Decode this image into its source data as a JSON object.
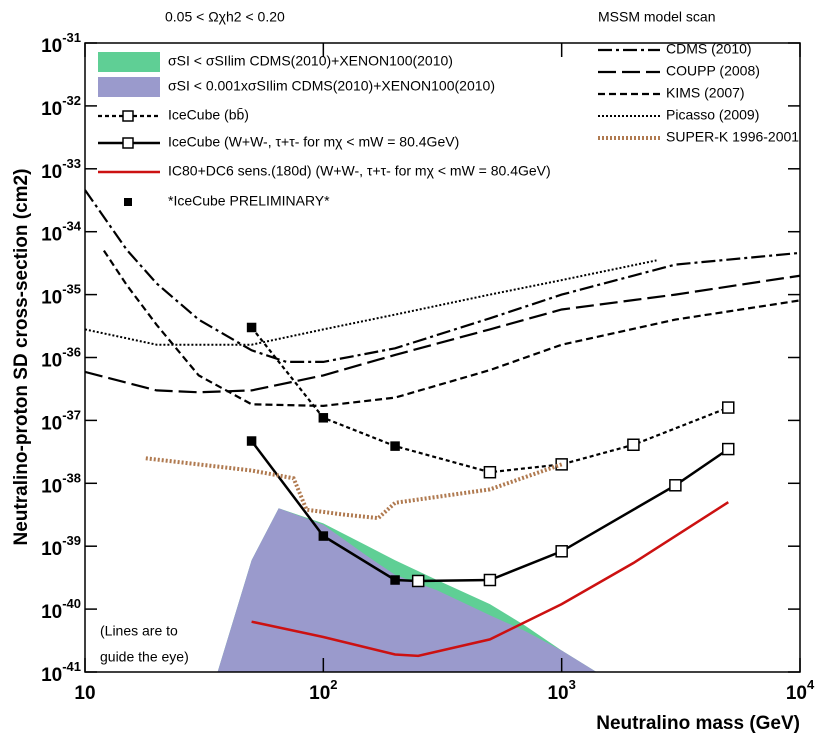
{
  "chart_data": {
    "type": "line",
    "log_x": true,
    "log_y": true,
    "xlabel": "Neutralino mass (GeV)",
    "ylabel": "Neutralino-proton SD cross-section (cm2)",
    "xlim": [
      10,
      10000
    ],
    "ylim": [
      1e-41,
      1e-31
    ],
    "xticks": [
      {
        "value": 10,
        "label": "10"
      },
      {
        "value": 100,
        "label": "10^2"
      },
      {
        "value": 1000,
        "label": "10^3"
      },
      {
        "value": 10000,
        "label": "10^4"
      }
    ],
    "yticks": [
      {
        "value": 1e-31,
        "label": "10^-31"
      },
      {
        "value": 1e-32,
        "label": "10^-32"
      },
      {
        "value": 1e-33,
        "label": "10^-33"
      },
      {
        "value": 1e-34,
        "label": "10^-34"
      },
      {
        "value": 1e-35,
        "label": "10^-35"
      },
      {
        "value": 1e-36,
        "label": "10^-36"
      },
      {
        "value": 1e-37,
        "label": "10^-37"
      },
      {
        "value": 1e-38,
        "label": "10^-38"
      },
      {
        "value": 1e-39,
        "label": "10^-39"
      },
      {
        "value": 1e-40,
        "label": "10^-40"
      },
      {
        "value": 1e-41,
        "label": "10^-41"
      }
    ],
    "annotations": [
      "0.05 < Ωχh2 < 0.20",
      "MSSM model scan",
      "(Lines are to",
      "guide the eye)",
      "*IceCube PRELIMINARY*"
    ],
    "series": [
      {
        "name": "σSI < σSIlim CDMS(2010)+XENON100(2010)",
        "kind": "area",
        "legend": "left",
        "color": "#5fcf95",
        "x": [
          36,
          50,
          65,
          100,
          150,
          200,
          300,
          500,
          700,
          1000,
          1400
        ],
        "values": [
          1e-41,
          6e-40,
          4e-39,
          2.3e-39,
          1.05e-39,
          6e-40,
          2.9e-40,
          1.2e-40,
          5.5e-41,
          2.2e-41,
          1e-41
        ]
      },
      {
        "name": "σSI < 0.001xσSIlim CDMS(2010)+XENON100(2010)",
        "kind": "area",
        "legend": "left",
        "color": "#9a9acc",
        "x": [
          36,
          50,
          65,
          100,
          150,
          200,
          300,
          500,
          700,
          1000,
          1400
        ],
        "values": [
          1e-41,
          6e-40,
          4e-39,
          2.2e-39,
          7.3e-40,
          3.5e-40,
          2e-40,
          8e-41,
          4.5e-41,
          2.2e-41,
          1e-41
        ]
      },
      {
        "name": "IceCube (bb̄)",
        "kind": "line",
        "legend": "left",
        "color": "#000000",
        "dash": "4,3",
        "width": 2.2,
        "marker": "square",
        "x": [
          50,
          100,
          200,
          500,
          1000,
          2000,
          5000
        ],
        "values": [
          3e-36,
          1.1e-37,
          3.9e-38,
          1.5e-38,
          2e-38,
          4.1e-38,
          1.6e-37
        ],
        "filled": [
          true,
          true,
          true,
          false,
          false,
          false,
          false
        ]
      },
      {
        "name": "IceCube (W+W-, τ+τ- for mχ < mW = 80.4GeV)",
        "kind": "line",
        "legend": "left",
        "color": "#000000",
        "dash": "none",
        "width": 2.5,
        "marker": "square",
        "x": [
          50,
          100,
          200,
          250,
          500,
          1000,
          3000,
          5000
        ],
        "values": [
          4.7e-38,
          1.45e-39,
          2.9e-40,
          2.8e-40,
          2.9e-40,
          8.3e-40,
          9.3e-39,
          3.5e-38
        ],
        "filled": [
          true,
          true,
          true,
          false,
          false,
          false,
          false,
          false
        ]
      },
      {
        "name": "IC80+DC6 sens.(180d) (W+W-, τ+τ- for mχ < mW = 80.4GeV)",
        "kind": "line",
        "legend": "left",
        "color": "#cc1111",
        "dash": "none",
        "width": 2.5,
        "x": [
          50,
          100,
          200,
          250,
          500,
          1000,
          2000,
          5000
        ],
        "values": [
          6.3e-41,
          3.6e-41,
          1.9e-41,
          1.8e-41,
          3.3e-41,
          1.2e-40,
          5.4e-40,
          5e-39
        ]
      },
      {
        "name": "CDMS (2010)",
        "kind": "line",
        "legend": "right",
        "color": "#000000",
        "dash": "14,4,3,4",
        "width": 2.2,
        "x": [
          10,
          15,
          20,
          30,
          50,
          70,
          100,
          200,
          500,
          1000,
          3000,
          10000
        ],
        "values": [
          4.6e-34,
          5.1e-35,
          1.5e-35,
          4e-36,
          1.3e-36,
          8.5e-37,
          8.5e-37,
          1.4e-36,
          4.2e-36,
          1e-35,
          3e-35,
          4.6e-35
        ]
      },
      {
        "name": "COUPP (2008)",
        "kind": "line",
        "legend": "right",
        "color": "#000000",
        "dash": "18,6",
        "width": 2.2,
        "x": [
          10,
          20,
          30,
          50,
          100,
          200,
          500,
          1000,
          3000,
          10000
        ],
        "values": [
          5.9e-37,
          3e-37,
          2.8e-37,
          3e-37,
          5.2e-37,
          1.1e-36,
          2.8e-36,
          5.8e-36,
          1e-35,
          2e-35
        ]
      },
      {
        "name": "KIMS (2007)",
        "kind": "line",
        "legend": "right",
        "color": "#000000",
        "dash": "7,4",
        "width": 2.2,
        "x": [
          12,
          15,
          20,
          30,
          50,
          100,
          200,
          500,
          1000,
          3000,
          10000
        ],
        "values": [
          5e-35,
          1.4e-35,
          3.3e-36,
          5.2e-37,
          1.8e-37,
          1.7e-37,
          2.3e-37,
          6.3e-37,
          1.6e-36,
          4e-36,
          8.1e-36
        ]
      },
      {
        "name": "Picasso (2009)",
        "kind": "line",
        "legend": "right",
        "color": "#000000",
        "dash": "2,2",
        "width": 2,
        "x": [
          10,
          20,
          50,
          100,
          200,
          500,
          1000,
          2500
        ],
        "values": [
          2.8e-36,
          1.6e-36,
          1.6e-36,
          2.8e-36,
          4.8e-36,
          1e-35,
          1.7e-35,
          3.5e-35
        ]
      },
      {
        "name": "SUPER-K 1996-2001",
        "kind": "line",
        "legend": "right",
        "color": "#b07a50",
        "dash": "2,2",
        "width": 4,
        "x": [
          18,
          30,
          50,
          75,
          85,
          120,
          170,
          200,
          500,
          1000
        ],
        "values": [
          2.5e-38,
          2e-38,
          1.6e-38,
          1.2e-38,
          3.8e-39,
          3.2e-39,
          2.8e-39,
          4.9e-39,
          8e-39,
          2e-38
        ]
      }
    ]
  }
}
